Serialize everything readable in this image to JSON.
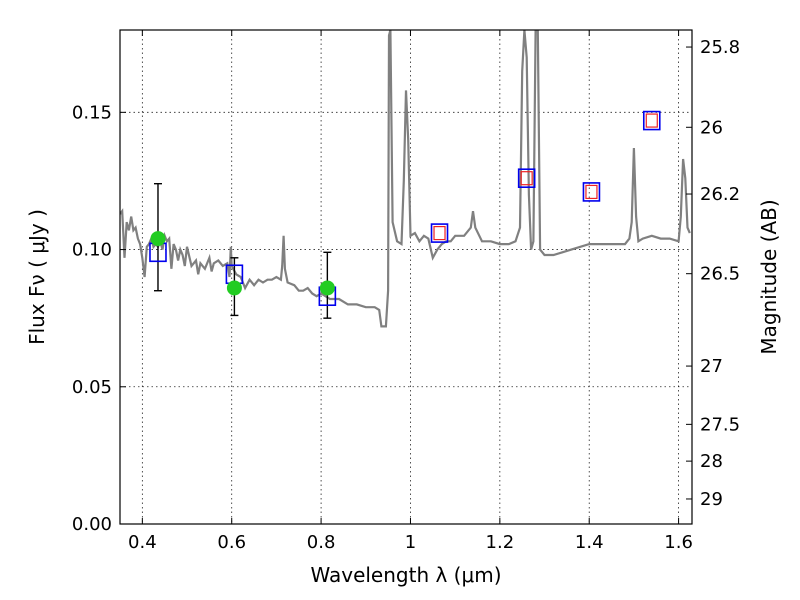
{
  "chart_data": {
    "type": "scatter",
    "xlabel": "Wavelength  λ (μm)",
    "ylabel": "Flux  Fν  ( μJy )",
    "y2label": "Magnitude (AB)",
    "xlim": [
      0.35,
      1.63
    ],
    "ylim": [
      0.0,
      0.18
    ],
    "xticks": [
      0.4,
      0.6,
      0.8,
      1.0,
      1.2,
      1.4,
      1.6
    ],
    "xtick_labels": [
      "0.4",
      "0.6",
      "0.8",
      "1",
      "1.2",
      "1.4",
      "1.6"
    ],
    "yticks": [
      0.0,
      0.05,
      0.1,
      0.15
    ],
    "ytick_labels": [
      "0.00",
      "0.05",
      "0.10",
      "0.15"
    ],
    "y2ticks": [
      {
        "label": "25.8",
        "mag": 25.8
      },
      {
        "label": "26",
        "mag": 26.0
      },
      {
        "label": "26.2",
        "mag": 26.2
      },
      {
        "label": "26.5",
        "mag": 26.5
      },
      {
        "label": "27",
        "mag": 27.0
      },
      {
        "label": "27.5",
        "mag": 27.5
      },
      {
        "label": "28",
        "mag": 28.0
      },
      {
        "label": "29",
        "mag": 29.0
      }
    ],
    "grid": true,
    "colors": {
      "spectrum": "#808080",
      "observed": "#22cc22",
      "model_box": "#0000ee",
      "model_inner": "#ee2222",
      "errorbar": "#000000"
    },
    "series": [
      {
        "kind": "observed_points",
        "points": [
          {
            "x": 0.435,
            "y": 0.104,
            "yerr_low": 0.085,
            "yerr_high": 0.124
          },
          {
            "x": 0.606,
            "y": 0.086,
            "yerr_low": 0.076,
            "yerr_high": 0.097
          },
          {
            "x": 0.814,
            "y": 0.086,
            "yerr_low": 0.075,
            "yerr_high": 0.099
          }
        ]
      },
      {
        "kind": "model_photometry",
        "points": [
          {
            "x": 0.435,
            "y": 0.099
          },
          {
            "x": 0.606,
            "y": 0.091
          },
          {
            "x": 0.814,
            "y": 0.083
          }
        ]
      },
      {
        "kind": "model_photometry_nir",
        "points": [
          {
            "x": 1.065,
            "y": 0.106
          },
          {
            "x": 1.26,
            "y": 0.126
          },
          {
            "x": 1.405,
            "y": 0.121
          },
          {
            "x": 1.54,
            "y": 0.147
          }
        ]
      },
      {
        "kind": "model_spectrum",
        "points": [
          [
            0.35,
            0.113
          ],
          [
            0.355,
            0.114
          ],
          [
            0.36,
            0.097
          ],
          [
            0.365,
            0.11
          ],
          [
            0.37,
            0.107
          ],
          [
            0.375,
            0.112
          ],
          [
            0.38,
            0.107
          ],
          [
            0.385,
            0.108
          ],
          [
            0.39,
            0.104
          ],
          [
            0.395,
            0.102
          ],
          [
            0.4,
            0.097
          ],
          [
            0.405,
            0.09
          ],
          [
            0.41,
            0.101
          ],
          [
            0.415,
            0.102
          ],
          [
            0.42,
            0.104
          ],
          [
            0.425,
            0.101
          ],
          [
            0.43,
            0.102
          ],
          [
            0.435,
            0.101
          ],
          [
            0.44,
            0.103
          ],
          [
            0.445,
            0.1
          ],
          [
            0.45,
            0.105
          ],
          [
            0.455,
            0.103
          ],
          [
            0.46,
            0.104
          ],
          [
            0.465,
            0.093
          ],
          [
            0.47,
            0.102
          ],
          [
            0.475,
            0.1
          ],
          [
            0.48,
            0.096
          ],
          [
            0.485,
            0.1
          ],
          [
            0.49,
            0.098
          ],
          [
            0.495,
            0.094
          ],
          [
            0.5,
            0.101
          ],
          [
            0.51,
            0.094
          ],
          [
            0.52,
            0.096
          ],
          [
            0.525,
            0.091
          ],
          [
            0.53,
            0.095
          ],
          [
            0.54,
            0.093
          ],
          [
            0.55,
            0.097
          ],
          [
            0.555,
            0.092
          ],
          [
            0.56,
            0.095
          ],
          [
            0.57,
            0.096
          ],
          [
            0.58,
            0.094
          ],
          [
            0.59,
            0.095
          ],
          [
            0.595,
            0.09
          ],
          [
            0.598,
            0.101
          ],
          [
            0.6,
            0.094
          ],
          [
            0.61,
            0.091
          ],
          [
            0.62,
            0.09
          ],
          [
            0.63,
            0.086
          ],
          [
            0.64,
            0.089
          ],
          [
            0.65,
            0.087
          ],
          [
            0.66,
            0.089
          ],
          [
            0.67,
            0.088
          ],
          [
            0.68,
            0.089
          ],
          [
            0.69,
            0.089
          ],
          [
            0.7,
            0.09
          ],
          [
            0.71,
            0.089
          ],
          [
            0.713,
            0.094
          ],
          [
            0.716,
            0.105
          ],
          [
            0.719,
            0.093
          ],
          [
            0.725,
            0.088
          ],
          [
            0.74,
            0.087
          ],
          [
            0.75,
            0.085
          ],
          [
            0.76,
            0.085
          ],
          [
            0.77,
            0.086
          ],
          [
            0.78,
            0.084
          ],
          [
            0.79,
            0.083
          ],
          [
            0.8,
            0.084
          ],
          [
            0.82,
            0.082
          ],
          [
            0.84,
            0.082
          ],
          [
            0.86,
            0.08
          ],
          [
            0.88,
            0.08
          ],
          [
            0.9,
            0.079
          ],
          [
            0.92,
            0.079
          ],
          [
            0.93,
            0.078
          ],
          [
            0.935,
            0.072
          ],
          [
            0.945,
            0.072
          ],
          [
            0.95,
            0.085
          ],
          [
            0.952,
            0.178
          ],
          [
            0.955,
            0.18
          ],
          [
            0.96,
            0.11
          ],
          [
            0.97,
            0.103
          ],
          [
            0.98,
            0.102
          ],
          [
            0.985,
            0.125
          ],
          [
            0.99,
            0.158
          ],
          [
            0.995,
            0.14
          ],
          [
            1.0,
            0.105
          ],
          [
            1.01,
            0.106
          ],
          [
            1.02,
            0.103
          ],
          [
            1.03,
            0.105
          ],
          [
            1.04,
            0.104
          ],
          [
            1.05,
            0.097
          ],
          [
            1.06,
            0.1
          ],
          [
            1.07,
            0.102
          ],
          [
            1.08,
            0.103
          ],
          [
            1.09,
            0.103
          ],
          [
            1.1,
            0.105
          ],
          [
            1.12,
            0.105
          ],
          [
            1.135,
            0.108
          ],
          [
            1.14,
            0.114
          ],
          [
            1.145,
            0.108
          ],
          [
            1.16,
            0.103
          ],
          [
            1.18,
            0.103
          ],
          [
            1.2,
            0.102
          ],
          [
            1.22,
            0.102
          ],
          [
            1.235,
            0.103
          ],
          [
            1.245,
            0.108
          ],
          [
            1.25,
            0.165
          ],
          [
            1.255,
            0.18
          ],
          [
            1.26,
            0.17
          ],
          [
            1.265,
            0.12
          ],
          [
            1.27,
            0.1
          ],
          [
            1.275,
            0.103
          ],
          [
            1.28,
            0.18
          ],
          [
            1.285,
            0.18
          ],
          [
            1.29,
            0.1
          ],
          [
            1.3,
            0.098
          ],
          [
            1.32,
            0.098
          ],
          [
            1.34,
            0.099
          ],
          [
            1.36,
            0.1
          ],
          [
            1.38,
            0.101
          ],
          [
            1.4,
            0.102
          ],
          [
            1.42,
            0.102
          ],
          [
            1.44,
            0.102
          ],
          [
            1.46,
            0.102
          ],
          [
            1.48,
            0.102
          ],
          [
            1.49,
            0.104
          ],
          [
            1.495,
            0.11
          ],
          [
            1.5,
            0.137
          ],
          [
            1.505,
            0.112
          ],
          [
            1.51,
            0.103
          ],
          [
            1.52,
            0.104
          ],
          [
            1.54,
            0.105
          ],
          [
            1.56,
            0.104
          ],
          [
            1.58,
            0.104
          ],
          [
            1.6,
            0.103
          ],
          [
            1.605,
            0.112
          ],
          [
            1.61,
            0.133
          ],
          [
            1.615,
            0.126
          ],
          [
            1.62,
            0.108
          ],
          [
            1.625,
            0.106
          ]
        ]
      }
    ]
  }
}
